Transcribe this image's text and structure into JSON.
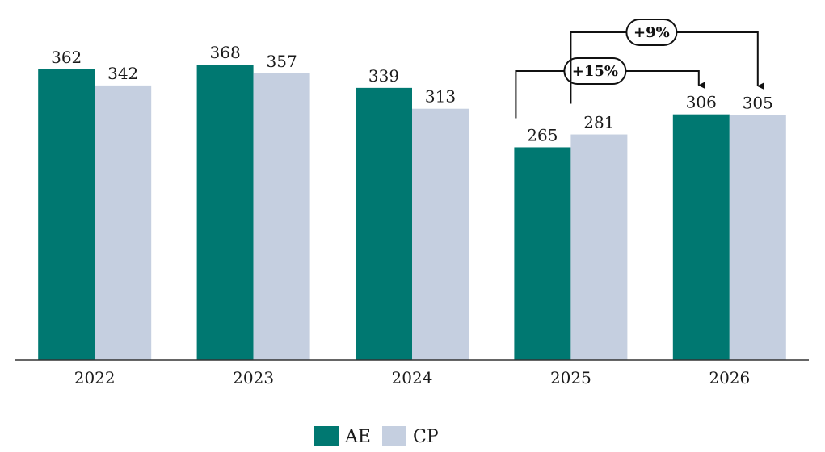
{
  "chart_data": {
    "type": "bar",
    "categories": [
      "2022",
      "2023",
      "2024",
      "2025",
      "2026"
    ],
    "series": [
      {
        "name": "AE",
        "values": [
          362,
          368,
          339,
          265,
          306
        ],
        "color": "#007871"
      },
      {
        "name": "CP",
        "values": [
          342,
          357,
          313,
          281,
          305
        ],
        "color": "#c5cfe0"
      }
    ],
    "ylim": [
      0,
      400
    ],
    "grid": false,
    "legend_position": "bottom-center",
    "annotations": [
      {
        "text": "+15%",
        "from": {
          "category": "2025",
          "series": "AE"
        },
        "to": {
          "category": "2026",
          "series": "AE"
        }
      },
      {
        "text": "+9%",
        "from": {
          "category": "2025",
          "series": "CP"
        },
        "to": {
          "category": "2026",
          "series": "CP"
        }
      }
    ]
  }
}
